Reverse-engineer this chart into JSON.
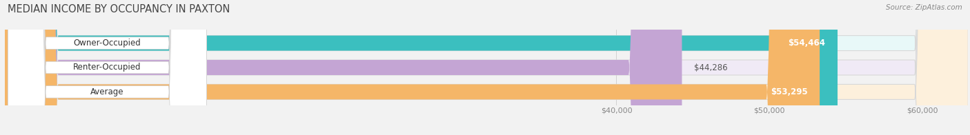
{
  "title": "MEDIAN INCOME BY OCCUPANCY IN PAXTON",
  "source": "Source: ZipAtlas.com",
  "categories": [
    "Owner-Occupied",
    "Renter-Occupied",
    "Average"
  ],
  "values": [
    54464,
    44286,
    53295
  ],
  "bar_colors": [
    "#3bbfbf",
    "#c4a5d4",
    "#f5b668"
  ],
  "bar_bg_colors": [
    "#e8f8f8",
    "#f0eaf6",
    "#fdf0dc"
  ],
  "value_labels": [
    "$54,464",
    "$44,286",
    "$53,295"
  ],
  "label_inside": [
    true,
    false,
    true
  ],
  "xlim_min": 0,
  "xlim_max": 63000,
  "xstart": 35000,
  "xtick_values": [
    40000,
    50000,
    60000
  ],
  "xtick_labels": [
    "$40,000",
    "$50,000",
    "$60,000"
  ],
  "bar_height": 0.62,
  "background_color": "#f2f2f2",
  "title_fontsize": 10.5,
  "source_fontsize": 7.5,
  "label_fontsize": 8.5,
  "tick_fontsize": 8,
  "cat_label_fontsize": 8.5,
  "label_color_inside": "white",
  "label_color_outside": "#555555"
}
